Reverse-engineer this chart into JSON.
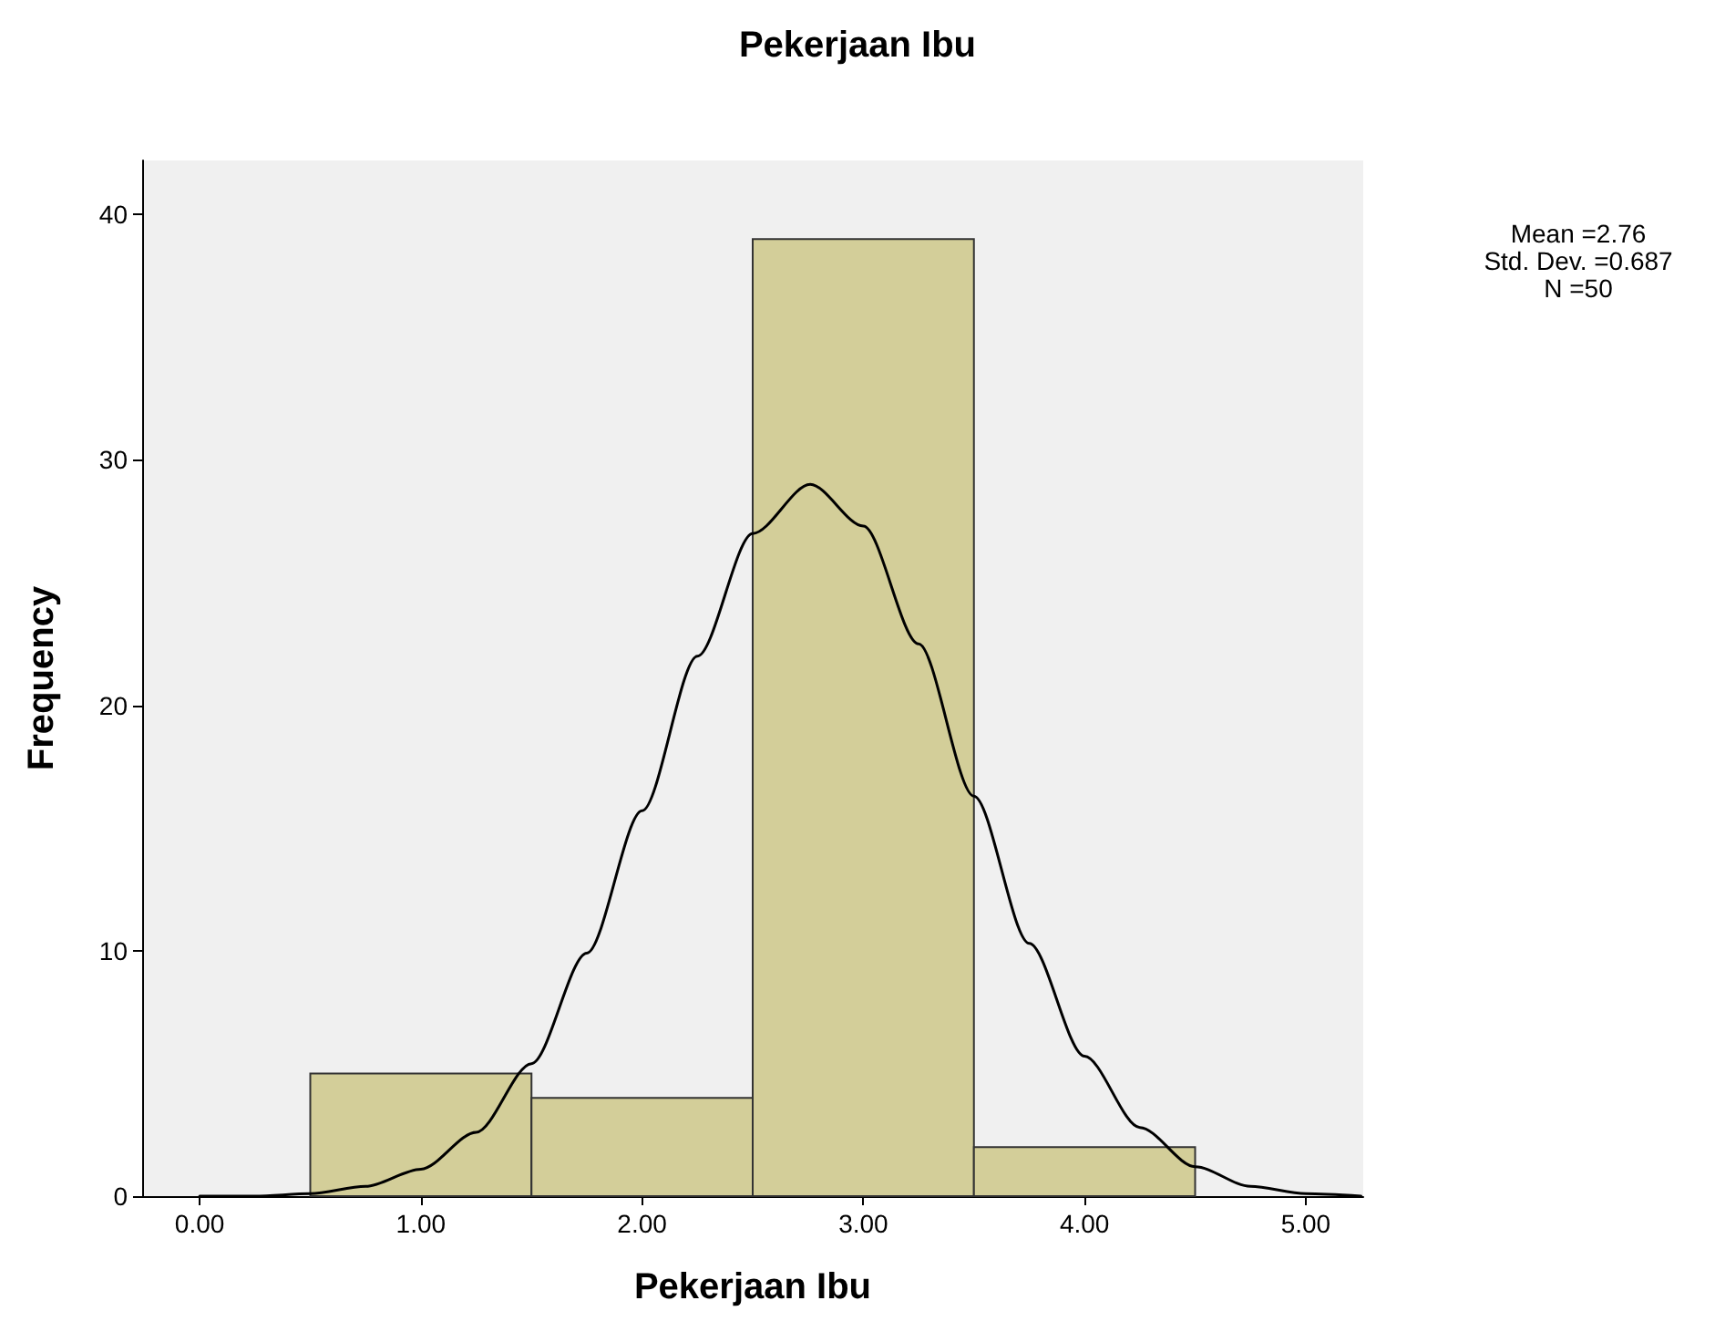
{
  "chart_data": {
    "type": "histogram",
    "title": "Pekerjaan Ibu",
    "xlabel": "Pekerjaan Ibu",
    "ylabel": "Frequency",
    "bins": [
      0.5,
      1.5,
      2.5,
      3.5,
      4.5
    ],
    "values": [
      5,
      4,
      39,
      2
    ],
    "color": "#d3ce99",
    "series": [
      {
        "type": "line",
        "color": "#000000",
        "x": [
          0,
          0.25,
          0.5,
          0.75,
          1,
          1.25,
          1.5,
          1.75,
          2,
          2.25,
          2.5,
          2.76,
          3,
          3.25,
          3.5,
          3.75,
          4,
          4.25,
          4.5,
          4.75,
          5,
          5.25
        ],
        "values": [
          0,
          0,
          0.1,
          0.4,
          1.1,
          2.6,
          5.4,
          9.9,
          15.7,
          22,
          27,
          29,
          27.3,
          22.5,
          16.3,
          10.3,
          5.7,
          2.8,
          1.2,
          0.4,
          0.1,
          0
        ]
      }
    ],
    "xlim": [
      -0.26,
      5.26
    ],
    "xticks": [
      {
        "value": 0,
        "label": "0.00"
      },
      {
        "value": 1,
        "label": "1.00"
      },
      {
        "value": 2,
        "label": "2.00"
      },
      {
        "value": 3,
        "label": "3.00"
      },
      {
        "value": 4,
        "label": "4.00"
      },
      {
        "value": 5,
        "label": "5.00"
      }
    ],
    "ylim": [
      0,
      42.2
    ],
    "yticks": [
      0,
      10,
      20,
      30,
      40
    ],
    "grid": false,
    "marker": "none",
    "line_style": "solid",
    "annotations": [
      "Mean =2.76",
      "Std. Dev. =0.687",
      "N =50"
    ]
  }
}
